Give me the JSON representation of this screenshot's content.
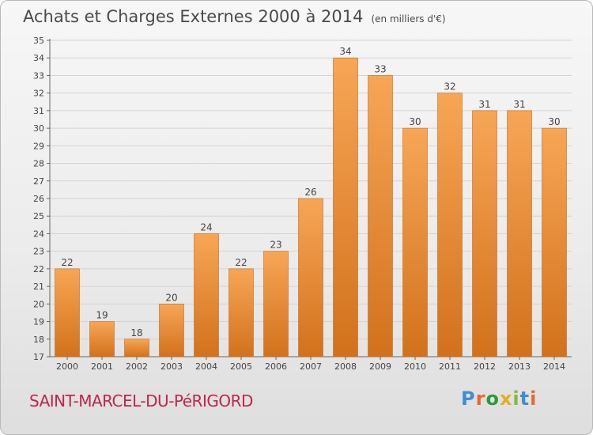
{
  "title": "Achats et Charges Externes 2000 à 2014",
  "unit": "(en milliers d'€)",
  "commune": "SAINT-MARCEL-DU-PéRIGORD",
  "logo": {
    "letters": [
      "P",
      "r",
      "o",
      "x",
      "i",
      "t",
      "i"
    ],
    "colors": [
      "#3d8fd1",
      "#e8692a",
      "#2c9a3f",
      "#e0b020",
      "#8ab83a",
      "#3d8fd1",
      "#e8692a"
    ]
  },
  "colors": {
    "bar_top": "#f7a656",
    "bar_bottom": "#d2711c",
    "bar_edge": "#c9691a",
    "grid": "#d4d4d4"
  },
  "chart_data": {
    "type": "bar",
    "categories": [
      "2000",
      "2001",
      "2002",
      "2003",
      "2004",
      "2005",
      "2006",
      "2007",
      "2008",
      "2009",
      "2010",
      "2011",
      "2012",
      "2013",
      "2014"
    ],
    "values": [
      22,
      19,
      18,
      20,
      24,
      22,
      23,
      26,
      34,
      33,
      30,
      32,
      31,
      31,
      30
    ],
    "ylim": [
      17,
      35
    ],
    "yticks": [
      17,
      18,
      19,
      20,
      21,
      22,
      23,
      24,
      25,
      26,
      27,
      28,
      29,
      30,
      31,
      32,
      33,
      34,
      35
    ],
    "grid": true
  }
}
